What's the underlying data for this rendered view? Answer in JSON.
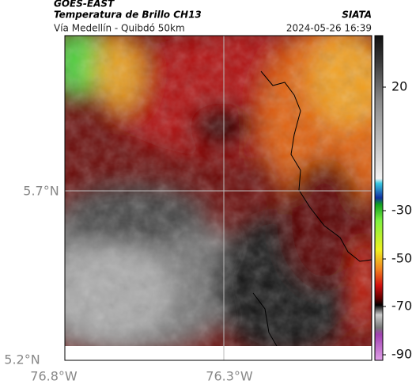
{
  "header": {
    "source": "GOES-EAST",
    "title": "Temperatura de Brillo CH13",
    "subtitle": "Vía Medellín - Quibdó 50km",
    "credit": "SIATA",
    "timestamp": "2024-05-26 16:39"
  },
  "map": {
    "lat_labels": [
      "5.7°N",
      "5.2°N"
    ],
    "lon_labels": [
      "76.8°W",
      "76.3°W"
    ]
  },
  "colorbar": {
    "ticks": [
      20,
      -30,
      -50,
      -70,
      -90
    ]
  }
}
